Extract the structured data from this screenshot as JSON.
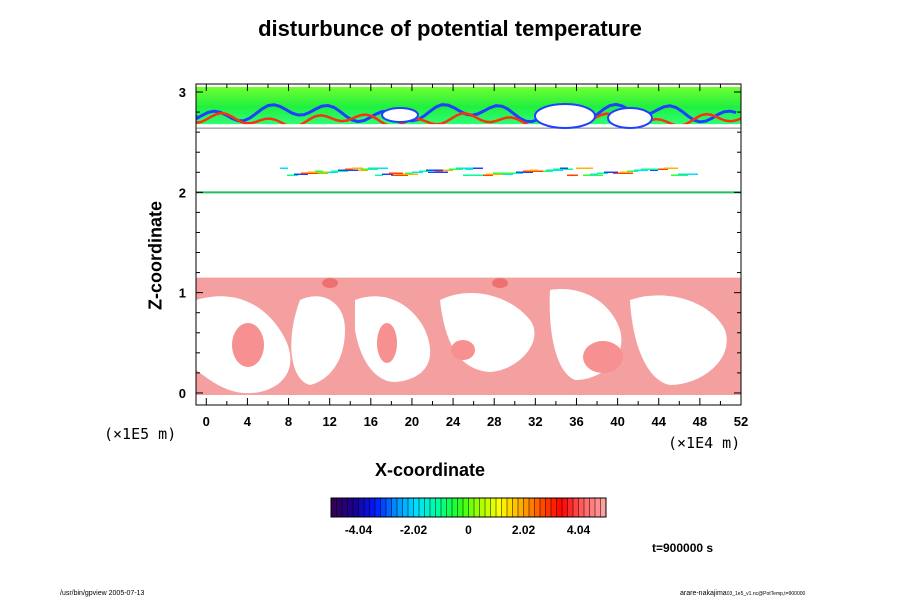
{
  "chart_data": {
    "type": "heatmap",
    "title": "disturbunce of potential temperature",
    "xlabel": "X-coordinate",
    "ylabel": "Z-coordinate",
    "x_unit": "(×1E4 m)",
    "y_unit": "(×1E5 m)",
    "xlim": [
      -1.0,
      52.0
    ],
    "ylim": [
      -0.12,
      3.08
    ],
    "x_ticks": [
      "0",
      "4",
      "8",
      "12",
      "16",
      "20",
      "24",
      "28",
      "32",
      "36",
      "40",
      "44",
      "48",
      "52"
    ],
    "y_ticks": [
      "0",
      "1",
      "2",
      "3"
    ],
    "colorbar": {
      "range": [
        -5.05,
        5.05
      ],
      "tick_labels": [
        "-4.04",
        "-2.02",
        "0",
        "2.02",
        "4.04"
      ],
      "colors": [
        "#33005a",
        "#1a0090",
        "#0018ff",
        "#0090ff",
        "#00e0ff",
        "#00ffa0",
        "#20ff20",
        "#a0ff00",
        "#ffff00",
        "#ffb000",
        "#ff5000",
        "#ff0000",
        "#ff6060",
        "#ffa0a0"
      ]
    },
    "features": [
      {
        "name": "upper-layer",
        "description": "green disturbance field",
        "z_range": [
          2.65,
          3.05
        ],
        "value": 0.6
      },
      {
        "name": "lower-layer",
        "description": "light-red warm eddies",
        "z_range": [
          -0.1,
          1.15
        ],
        "value": 4.6
      }
    ]
  },
  "time_label": "t=900000 s",
  "footer": {
    "left": "/usr/bin/gpview 2005-07-13",
    "right": "arare-nakajima",
    "right_small": "03_1e5_v1.nc@PotTemp,t=900000"
  },
  "colors": {
    "background": "#ffffff",
    "warm_eddy": "#f4a0a0",
    "warm_core": "#ee7070",
    "upper_green": "#40e040",
    "upper_blue": "#2040ff",
    "frame": "#000000"
  }
}
